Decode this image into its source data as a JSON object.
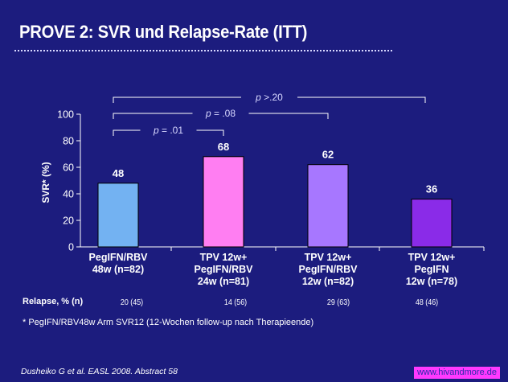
{
  "title": "PROVE 2: SVR und Relapse-Rate (ITT)",
  "chart_data": {
    "type": "bar",
    "ylabel": "SVR* (%)",
    "ylim": [
      0,
      100
    ],
    "yticks": [
      0,
      20,
      40,
      60,
      80,
      100
    ],
    "categories": [
      [
        "PegIFN/RBV",
        "48w (n=82)"
      ],
      [
        "TPV 12w+",
        "PegIFN/RBV",
        "24w (n=81)"
      ],
      [
        "TPV 12w+",
        "PegIFN/RBV",
        "12w (n=82)"
      ],
      [
        "TPV 12w+",
        "PegIFN",
        "12w (n=78)"
      ]
    ],
    "values": [
      48,
      68,
      62,
      36
    ],
    "data_labels": [
      "48",
      "68",
      "62",
      "36"
    ],
    "colors": [
      "#73b2f2",
      "#ff7ef2",
      "#a777ff",
      "#8a2be8"
    ],
    "comparisons": [
      {
        "from": 0,
        "to": 1,
        "label": "p = .01",
        "p_prefix": "p",
        "p_rest": " = .01"
      },
      {
        "from": 0,
        "to": 2,
        "label": "p = .08",
        "p_prefix": "p",
        "p_rest": " = .08"
      },
      {
        "from": 0,
        "to": 3,
        "label": "p >.20",
        "p_prefix": "p",
        "p_rest": " >.20"
      }
    ]
  },
  "relapse": {
    "label": "Relapse, % (n)",
    "values": [
      "20 (45)",
      "14 (56)",
      "29 (63)",
      "48 (46)"
    ]
  },
  "footnote": "* PegIFN/RBV48w Arm SVR12 (12-Wochen follow-up nach Therapieende)",
  "citation": "Dusheiko G et al. EASL 2008. Abstract 58",
  "watermark": "www.hivandmore.de"
}
